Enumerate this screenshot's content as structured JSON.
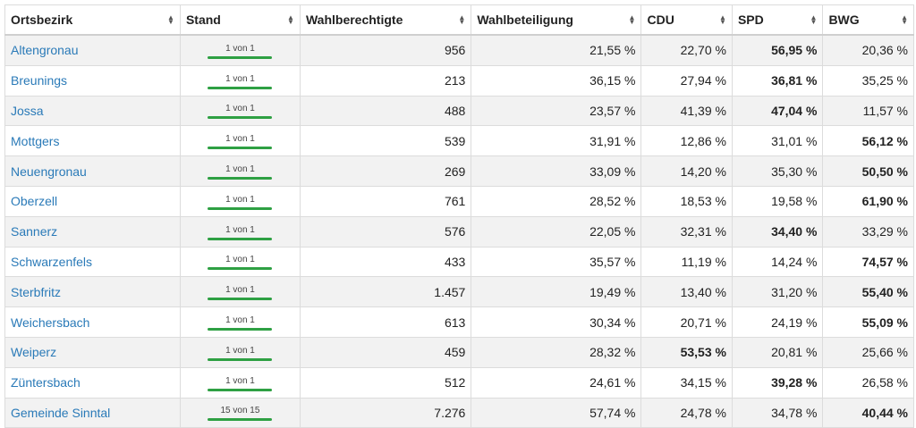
{
  "table": {
    "headers": [
      "Ortsbezirk",
      "Stand",
      "Wahlberechtigte",
      "Wahlbeteiligung",
      "CDU",
      "SPD",
      "BWG"
    ],
    "rows": [
      [
        "Altengronau",
        "1 von 1",
        "956",
        "21,55 %",
        "22,70 %",
        "56,95 %",
        "20,36 %"
      ],
      [
        "Breunings",
        "1 von 1",
        "213",
        "36,15 %",
        "27,94 %",
        "36,81 %",
        "35,25 %"
      ],
      [
        "Jossa",
        "1 von 1",
        "488",
        "23,57 %",
        "41,39 %",
        "47,04 %",
        "11,57 %"
      ],
      [
        "Mottgers",
        "1 von 1",
        "539",
        "31,91 %",
        "12,86 %",
        "31,01 %",
        "56,12 %"
      ],
      [
        "Neuengronau",
        "1 von 1",
        "269",
        "33,09 %",
        "14,20 %",
        "35,30 %",
        "50,50 %"
      ],
      [
        "Oberzell",
        "1 von 1",
        "761",
        "28,52 %",
        "18,53 %",
        "19,58 %",
        "61,90 %"
      ],
      [
        "Sannerz",
        "1 von 1",
        "576",
        "22,05 %",
        "32,31 %",
        "34,40 %",
        "33,29 %"
      ],
      [
        "Schwarzenfels",
        "1 von 1",
        "433",
        "35,57 %",
        "11,19 %",
        "14,24 %",
        "74,57 %"
      ],
      [
        "Sterbfritz",
        "1 von 1",
        "1.457",
        "19,49 %",
        "13,40 %",
        "31,20 %",
        "55,40 %"
      ],
      [
        "Weichersbach",
        "1 von 1",
        "613",
        "30,34 %",
        "20,71 %",
        "24,19 %",
        "55,09 %"
      ],
      [
        "Weiperz",
        "1 von 1",
        "459",
        "28,32 %",
        "53,53 %",
        "20,81 %",
        "25,66 %"
      ],
      [
        "Züntersbach",
        "1 von 1",
        "512",
        "24,61 %",
        "34,15 %",
        "39,28 %",
        "26,58 %"
      ],
      [
        "Gemeinde Sinntal",
        "15 von 15",
        "7.276",
        "57,74 %",
        "24,78 %",
        "34,78 %",
        "40,44 %"
      ]
    ],
    "bold_column": [
      5,
      5,
      5,
      6,
      6,
      6,
      5,
      6,
      6,
      6,
      4,
      5,
      6
    ]
  }
}
